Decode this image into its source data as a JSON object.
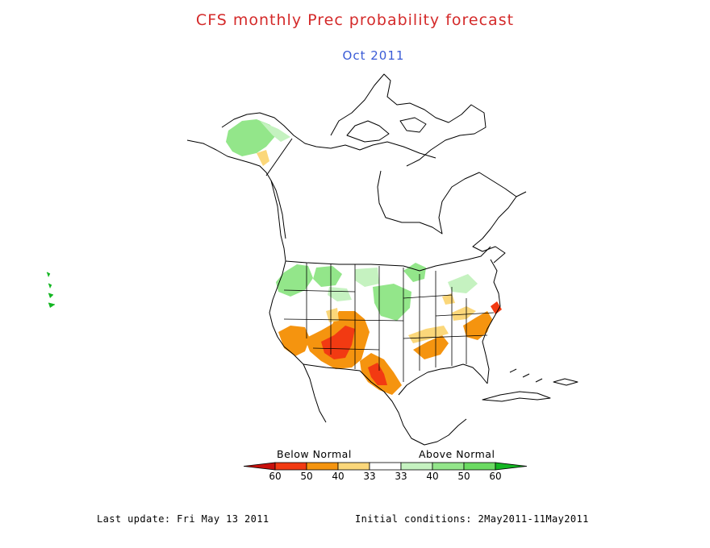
{
  "header": {
    "title": "CFS monthly Prec probability forecast",
    "subtitle": "Oct 2011"
  },
  "legend": {
    "below_label": "Below Normal",
    "above_label": "Above Normal",
    "tick_labels": [
      "60",
      "50",
      "40",
      "33",
      "33",
      "40",
      "50",
      "60"
    ],
    "colors": {
      "below_60": "#c8100c",
      "below_50": "#f23a12",
      "below_40": "#f5940f",
      "below_33": "#fbd77a",
      "normal": "#ffffff",
      "above_33": "#c5f2c0",
      "above_40": "#93e68a",
      "above_50": "#6bdb62",
      "above_60": "#13b622"
    }
  },
  "footer": {
    "last_update": "Last update: Fri May 13 2011",
    "initial_conditions": "Initial conditions: 2May2011-11May2011"
  }
}
